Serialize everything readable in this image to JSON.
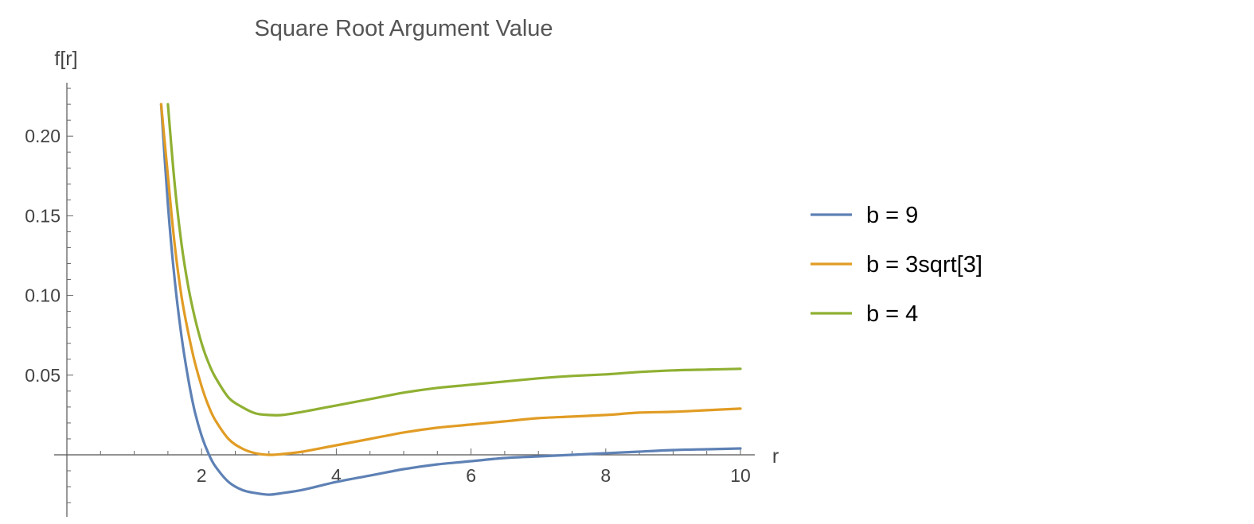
{
  "chart_data": {
    "type": "line",
    "title": "Square Root Argument Value",
    "xlabel": "r",
    "ylabel": "f[r]",
    "xlim": [
      0,
      10.2
    ],
    "ylim": [
      -0.038,
      0.232
    ],
    "x_ticks": [
      {
        "value": 2,
        "label": "2"
      },
      {
        "value": 4,
        "label": "4"
      },
      {
        "value": 6,
        "label": "6"
      },
      {
        "value": 8,
        "label": "8"
      },
      {
        "value": 10,
        "label": "10"
      }
    ],
    "y_ticks": [
      {
        "value": 0.05,
        "label": "0.05"
      },
      {
        "value": 0.1,
        "label": "0.10"
      },
      {
        "value": 0.15,
        "label": "0.15"
      },
      {
        "value": 0.2,
        "label": "0.20"
      }
    ],
    "grid": false,
    "legend_position": "right",
    "series": [
      {
        "name": "b = 9",
        "color": "#5E81B5",
        "x": [
          1.4,
          1.5,
          1.6,
          1.7,
          1.8,
          1.9,
          2.0,
          2.1,
          2.2,
          2.4,
          2.6,
          2.8,
          3.0,
          3.2,
          3.5,
          4.0,
          4.5,
          5.0,
          5.5,
          6.0,
          6.5,
          7.0,
          7.5,
          8.0,
          8.5,
          9.0,
          9.5,
          10.0
        ],
        "y": [
          0.22,
          0.157,
          0.11,
          0.075,
          0.048,
          0.027,
          0.012,
          0.001,
          -0.007,
          -0.017,
          -0.022,
          -0.024,
          -0.025,
          -0.024,
          -0.022,
          -0.017,
          -0.013,
          -0.009,
          -0.006,
          -0.004,
          -0.002,
          -0.001,
          0.0,
          0.001,
          0.002,
          0.003,
          0.0035,
          0.004
        ]
      },
      {
        "name": "b = 3sqrt[3]",
        "color": "#E19C24",
        "x": [
          1.4,
          1.5,
          1.6,
          1.7,
          1.8,
          1.9,
          2.0,
          2.1,
          2.2,
          2.4,
          2.6,
          2.8,
          3.0,
          3.2,
          3.5,
          4.0,
          4.5,
          5.0,
          5.5,
          6.0,
          6.5,
          7.0,
          7.5,
          8.0,
          8.5,
          9.0,
          9.5,
          10.0
        ],
        "y": [
          0.22,
          0.175,
          0.132,
          0.1,
          0.077,
          0.058,
          0.043,
          0.031,
          0.022,
          0.01,
          0.004,
          0.001,
          0.0,
          0.0005,
          0.002,
          0.006,
          0.01,
          0.014,
          0.017,
          0.019,
          0.021,
          0.023,
          0.024,
          0.025,
          0.0265,
          0.027,
          0.028,
          0.029
        ]
      },
      {
        "name": "b = 4",
        "color": "#8FB032",
        "x": [
          1.5,
          1.6,
          1.7,
          1.8,
          1.9,
          2.0,
          2.1,
          2.2,
          2.4,
          2.6,
          2.8,
          3.0,
          3.2,
          3.5,
          4.0,
          4.5,
          5.0,
          5.5,
          6.0,
          6.5,
          7.0,
          7.5,
          8.0,
          8.5,
          9.0,
          9.5,
          10.0
        ],
        "y": [
          0.22,
          0.17,
          0.133,
          0.106,
          0.086,
          0.07,
          0.058,
          0.049,
          0.036,
          0.03,
          0.026,
          0.025,
          0.025,
          0.027,
          0.031,
          0.035,
          0.039,
          0.042,
          0.044,
          0.046,
          0.048,
          0.0495,
          0.0505,
          0.052,
          0.053,
          0.0535,
          0.054
        ]
      }
    ]
  }
}
